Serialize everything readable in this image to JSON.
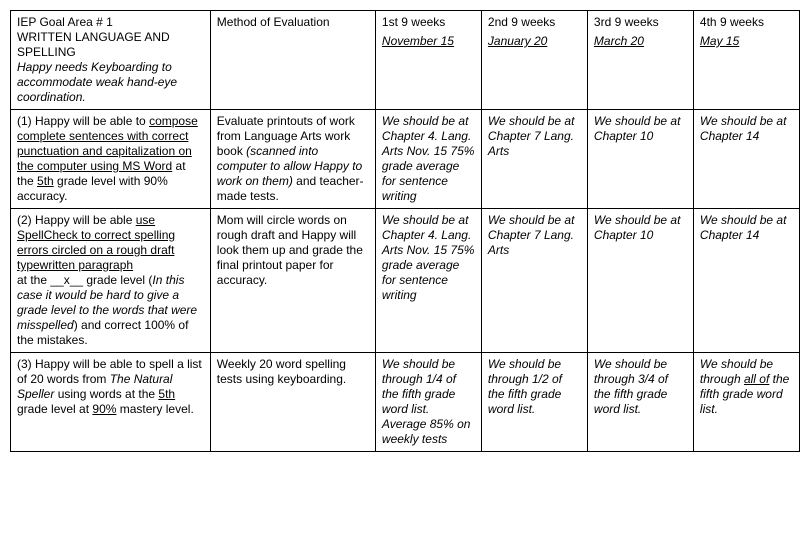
{
  "header": {
    "goal_area_title": "IEP Goal Area # 1",
    "subject": "WRITTEN LANGUAGE AND SPELLING",
    "note": "Happy needs Keyboarding to accommodate weak hand-eye coordination.",
    "method_label": "Method of Evaluation",
    "periods": [
      {
        "label": "1st  9 weeks",
        "date": "November 15"
      },
      {
        "label": "2nd  9 weeks",
        "date": "January 20"
      },
      {
        "label": "3rd 9 weeks",
        "date": "March 20"
      },
      {
        "label": "4th  9 weeks",
        "date": "May 15"
      }
    ]
  },
  "rows": [
    {
      "goal_pre": "(1) Happy will be able to ",
      "goal_ul": "compose complete sentences with correct punctuation and capitalization on the computer using MS Word",
      "goal_mid1": " at the ",
      "goal_ul2": "5th",
      "goal_post": " grade level with 90% accuracy.",
      "method_pre": "Evaluate printouts of work from Language Arts work book ",
      "method_it": "(scanned into computer to allow Happy to work on them)",
      "method_post": " and teacher-made tests.",
      "p1": "We should be at Chapter 4. Lang. Arts Nov. 15\n75% grade average for sentence writing",
      "p2": "We should be at Chapter 7 Lang. Arts",
      "p3": "We should be at Chapter 10",
      "p4": "We should be at Chapter 14"
    },
    {
      "goal_pre": "(2)  Happy will be able ",
      "goal_ul": "use SpellCheck to correct spelling errors circled on a rough draft typewritten paragraph",
      "goal_mid1": "\nat the __x__ grade level (",
      "goal_it": "In this case it would be hard to give a grade level to the words that were misspelled",
      "goal_post2": ") and correct 100% of the mistakes.",
      "method_plain": "Mom will circle words on rough draft and Happy will look them up and grade the final printout paper for accuracy.",
      "p1": "We should be at Chapter 4. Lang. Arts Nov. 15\n75% grade average for sentence writing",
      "p2": "We should be at Chapter 7 Lang. Arts",
      "p3": "We should be at Chapter 10",
      "p4": "We should be at Chapter 14"
    },
    {
      "goal_pre": "(3)  Happy will be able to spell a list of 20 words from ",
      "goal_it_title": "The Natural Speller",
      "goal_mid1": " using words at the  ",
      "goal_ul2": "5th",
      "goal_mid2": "  grade level at ",
      "goal_ul3": "90%",
      "goal_post": " mastery level.",
      "method_plain": "Weekly 20 word spelling tests using keyboarding.",
      "p1": "We should be through 1/4 of the fifth grade word list. Average 85% on weekly tests",
      "p2": "We should be through 1/2 of the fifth grade word list.",
      "p3": "We should be through 3/4 of the fifth grade word list.",
      "p4_pre": "We should be through ",
      "p4_ul": "all of",
      "p4_post": " the fifth grade word list."
    }
  ],
  "colors": {
    "border": "#000000",
    "bg": "#ffffff",
    "text": "#000000"
  }
}
